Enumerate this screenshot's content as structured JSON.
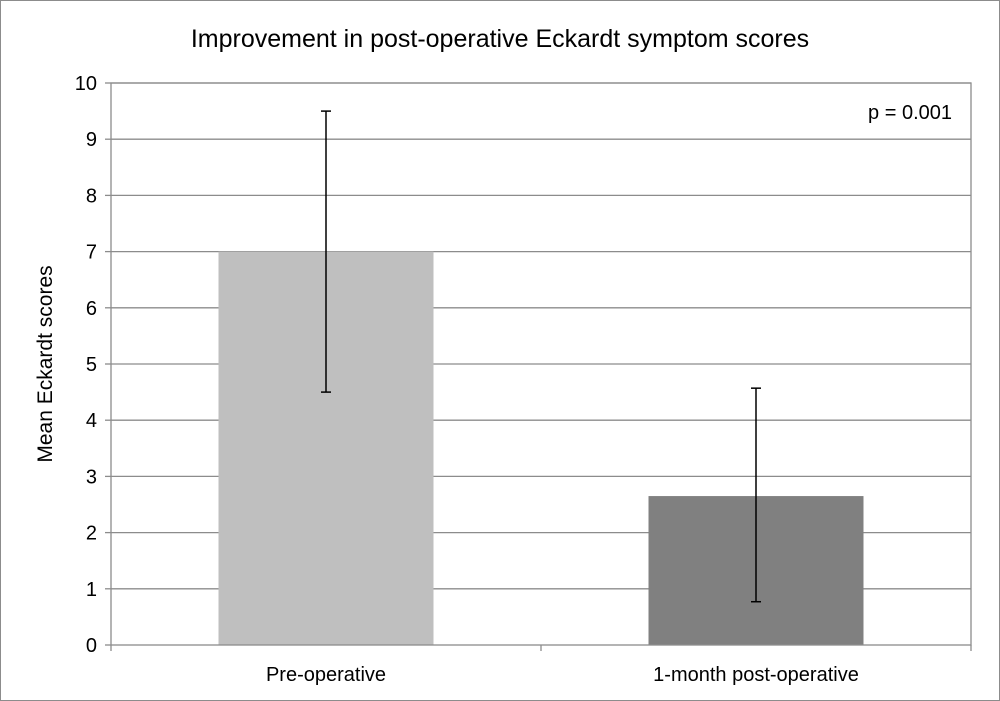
{
  "chart_data": {
    "type": "bar",
    "title": "Improvement in post-operative Eckardt symptom scores",
    "xlabel": "",
    "ylabel": "Mean Eckardt scores",
    "categories": [
      "Pre-operative",
      "1-month post-operative"
    ],
    "values": [
      7.0,
      2.65
    ],
    "error_low": [
      4.5,
      0.77
    ],
    "error_high": [
      9.5,
      4.57
    ],
    "bar_colors": [
      "#bfbfbf",
      "#808080"
    ],
    "ylim": [
      0,
      10
    ],
    "yticks": [
      0,
      1,
      2,
      3,
      4,
      5,
      6,
      7,
      8,
      9,
      10
    ],
    "grid": true,
    "legend": "none",
    "annotation": "p = 0.001"
  }
}
